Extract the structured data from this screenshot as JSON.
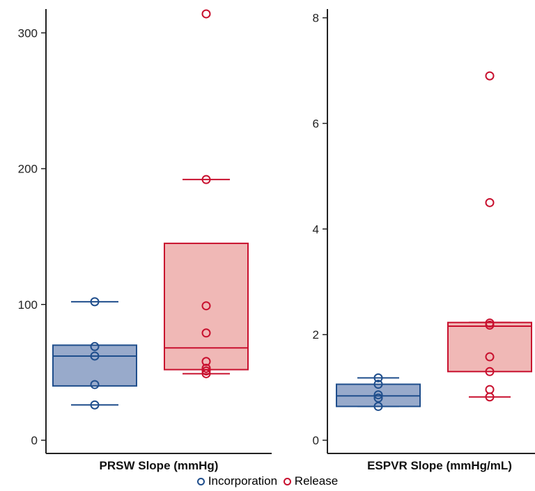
{
  "legend": {
    "items": [
      {
        "label": "Incorporation",
        "color": "#1f4e8c"
      },
      {
        "label": "Release",
        "color": "#c8102e"
      }
    ]
  },
  "chart_data": [
    {
      "type": "box",
      "title": "",
      "xlabel": "PRSW Slope (mmHg)",
      "ylabel": "",
      "ylim": [
        0,
        315
      ],
      "yticks": [
        0,
        100,
        200,
        300
      ],
      "grid": false,
      "series": [
        {
          "name": "Incorporation",
          "color": "#1f4e8c",
          "fill": "#98aacb",
          "box": {
            "whisker_low": 26,
            "q1": 40,
            "median": 62,
            "q3": 70,
            "whisker_high": 102
          },
          "points": [
            26,
            41,
            62,
            69,
            102
          ]
        },
        {
          "name": "Release",
          "color": "#c8102e",
          "fill": "#f0b8b6",
          "box": {
            "whisker_low": 49,
            "q1": 52,
            "median": 68,
            "q3": 145,
            "whisker_high": 192
          },
          "points": [
            49,
            51,
            53,
            58,
            79,
            99,
            192,
            314
          ]
        }
      ]
    },
    {
      "type": "box",
      "title": "",
      "xlabel": "ESPVR Slope (mmHg/mL)",
      "ylabel": "",
      "ylim": [
        0,
        8.1
      ],
      "yticks": [
        0,
        2,
        4,
        6,
        8
      ],
      "grid": false,
      "series": [
        {
          "name": "Incorporation",
          "color": "#1f4e8c",
          "fill": "#98aacb",
          "box": {
            "whisker_low": 0.64,
            "q1": 0.64,
            "median": 0.84,
            "q3": 1.06,
            "whisker_high": 1.18
          },
          "points": [
            0.64,
            0.8,
            0.86,
            1.06,
            1.18
          ]
        },
        {
          "name": "Release",
          "color": "#c8102e",
          "fill": "#f0b8b6",
          "box": {
            "whisker_low": 0.82,
            "q1": 1.3,
            "median": 2.16,
            "q3": 2.23,
            "whisker_high": 2.23
          },
          "points": [
            0.82,
            0.96,
            1.3,
            1.58,
            2.18,
            2.22,
            4.5,
            6.9
          ]
        }
      ]
    }
  ]
}
